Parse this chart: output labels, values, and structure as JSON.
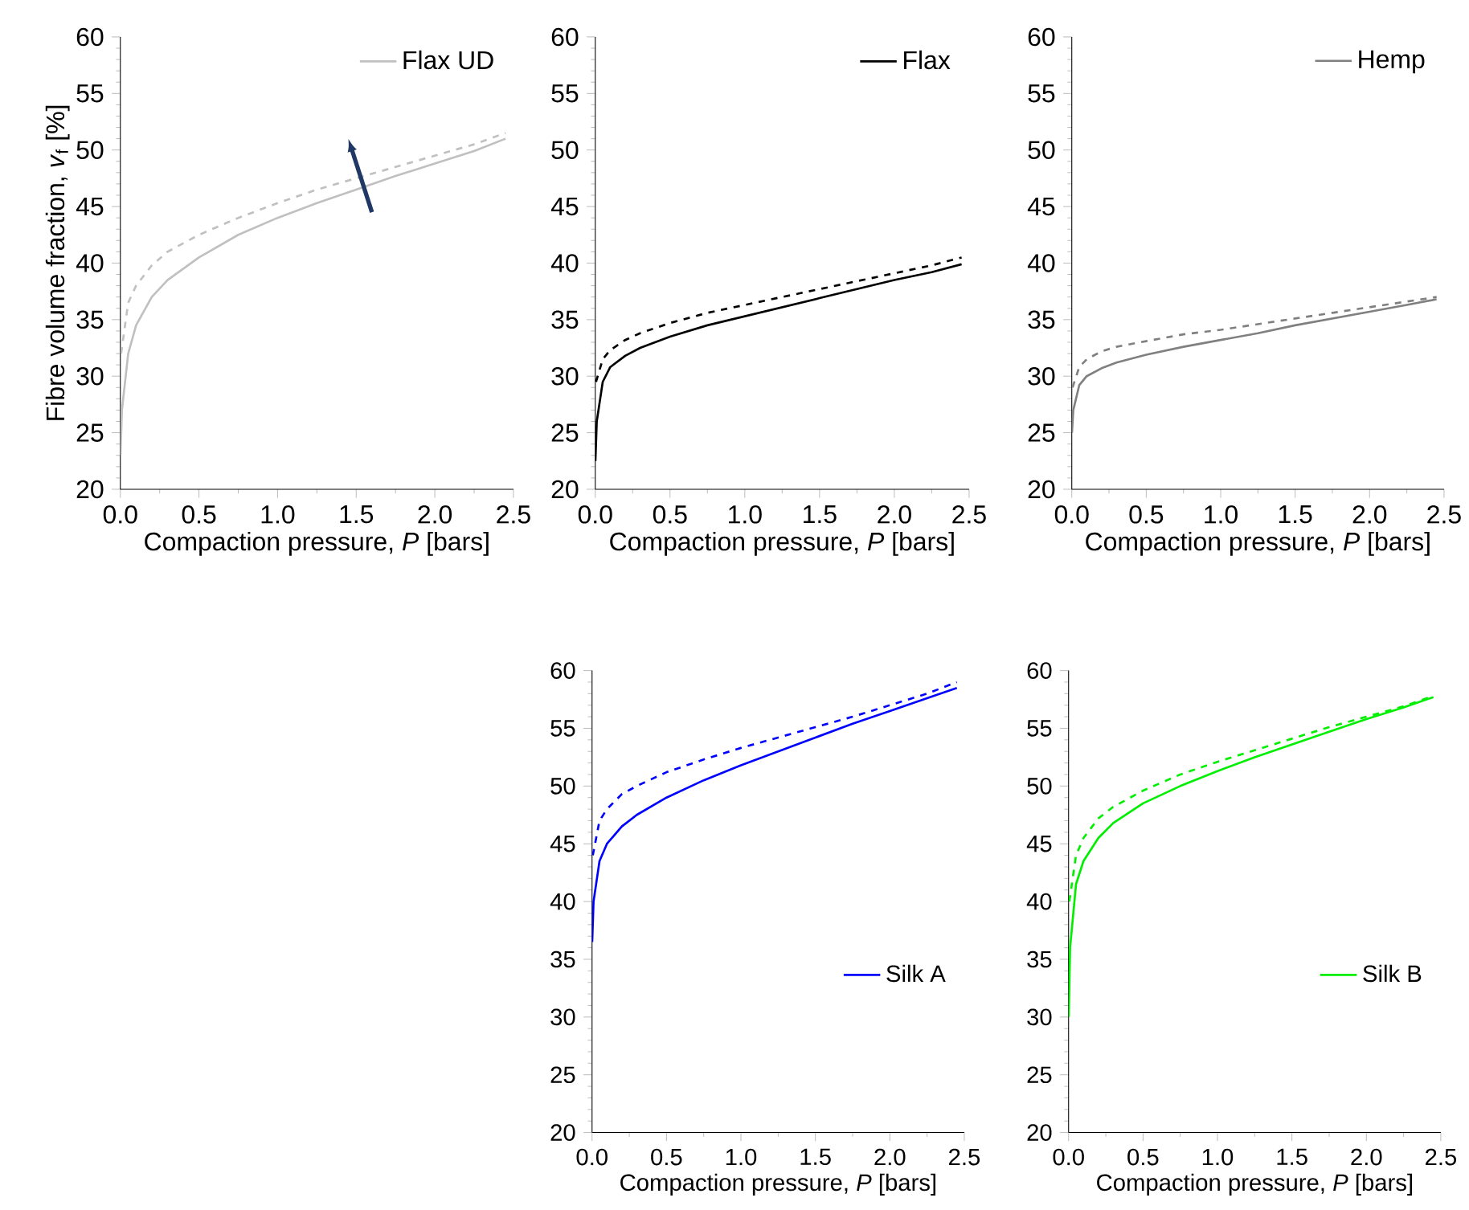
{
  "chart_data": [
    {
      "type": "line",
      "xlabel": "Compaction pressure, *P* [bars]",
      "ylabel": "Fibre volume fraction, *v*$_{f}$ [%]",
      "xlim": [
        0,
        2.5
      ],
      "ylim": [
        20,
        60
      ],
      "xticks": [
        {
          "value": 0,
          "label": "0.0"
        },
        0.5,
        {
          "value": 1,
          "label": "1.0"
        },
        1.5,
        {
          "value": 2,
          "label": "2.0"
        },
        2.5
      ],
      "yticks": [
        20,
        25,
        30,
        35,
        40,
        45,
        50,
        55,
        60
      ],
      "legend": "top right",
      "series": [
        {
          "name": "Flax UD",
          "color": "#c0c0c0",
          "line_style": "solid",
          "x": [
            0.001,
            0.01,
            0.05,
            0.1,
            0.2,
            0.3,
            0.5,
            0.75,
            1.0,
            1.25,
            1.5,
            1.75,
            2.0,
            2.25,
            2.45
          ],
          "values": [
            23,
            27,
            32,
            34.5,
            37,
            38.5,
            40.5,
            42.5,
            44,
            45.3,
            46.5,
            47.7,
            48.8,
            49.9,
            51
          ]
        },
        {
          "color": "#c0c0c0",
          "line_style": "dashed",
          "x": [
            0.005,
            0.05,
            0.1,
            0.2,
            0.3,
            0.5,
            0.75,
            1.0,
            1.25,
            1.5,
            1.75,
            2.0,
            2.25,
            2.45
          ],
          "values": [
            32,
            36.5,
            38,
            39.8,
            41,
            42.5,
            44,
            45.3,
            46.5,
            47.5,
            48.5,
            49.5,
            50.5,
            51.5
          ]
        }
      ]
    },
    {
      "type": "line",
      "xlabel": "Compaction pressure, *P* [bars]",
      "xlim": [
        0,
        2.5
      ],
      "ylim": [
        20,
        60
      ],
      "xticks": [
        {
          "value": 0,
          "label": "0.0"
        },
        0.5,
        {
          "value": 1,
          "label": "1.0"
        },
        1.5,
        {
          "value": 2,
          "label": "2.0"
        },
        2.5
      ],
      "yticks": [
        20,
        25,
        30,
        35,
        40,
        45,
        50,
        55,
        60
      ],
      "legend": "top right",
      "series": [
        {
          "name": "Flax",
          "color": "#000000",
          "line_style": "solid",
          "x": [
            0.001,
            0.01,
            0.05,
            0.1,
            0.2,
            0.3,
            0.5,
            0.75,
            1.0,
            1.25,
            1.5,
            1.75,
            2.0,
            2.25,
            2.45
          ],
          "values": [
            22.5,
            26,
            29.5,
            30.8,
            31.8,
            32.5,
            33.5,
            34.5,
            35.3,
            36.1,
            36.9,
            37.7,
            38.5,
            39.2,
            39.9
          ]
        },
        {
          "color": "#000000",
          "line_style": "dashed",
          "x": [
            0.005,
            0.05,
            0.1,
            0.2,
            0.3,
            0.5,
            0.75,
            1.0,
            1.25,
            1.5,
            1.75,
            2.0,
            2.25,
            2.45
          ],
          "values": [
            29.5,
            31.5,
            32.3,
            33.2,
            33.8,
            34.7,
            35.6,
            36.3,
            37,
            37.7,
            38.4,
            39.1,
            39.8,
            40.5
          ]
        }
      ]
    },
    {
      "type": "line",
      "xlabel": "Compaction pressure, *P* [bars]",
      "xlim": [
        0,
        2.5
      ],
      "ylim": [
        20,
        60
      ],
      "xticks": [
        {
          "value": 0,
          "label": "0.0"
        },
        0.5,
        {
          "value": 1,
          "label": "1.0"
        },
        1.5,
        {
          "value": 2,
          "label": "2.0"
        },
        2.5
      ],
      "yticks": [
        20,
        25,
        30,
        35,
        40,
        45,
        50,
        55,
        60
      ],
      "legend": "top right",
      "series": [
        {
          "name": "Hemp",
          "color": "#808080",
          "line_style": "solid",
          "x": [
            0.001,
            0.01,
            0.05,
            0.1,
            0.2,
            0.3,
            0.5,
            0.75,
            1.0,
            1.25,
            1.5,
            1.75,
            2.0,
            2.25,
            2.45
          ],
          "values": [
            25,
            27,
            29.2,
            30,
            30.7,
            31.2,
            31.9,
            32.6,
            33.2,
            33.8,
            34.5,
            35.1,
            35.7,
            36.3,
            36.8
          ]
        },
        {
          "color": "#808080",
          "line_style": "dashed",
          "x": [
            0.005,
            0.05,
            0.1,
            0.2,
            0.3,
            0.5,
            0.75,
            1.0,
            1.25,
            1.5,
            1.75,
            2.0,
            2.25,
            2.45
          ],
          "values": [
            29,
            30.8,
            31.5,
            32.2,
            32.6,
            33.1,
            33.7,
            34.1,
            34.6,
            35.1,
            35.6,
            36.1,
            36.6,
            37.0
          ]
        }
      ]
    },
    {
      "type": "line",
      "xlabel": "Compaction pressure, *P* [bars]",
      "xlim": [
        0,
        2.5
      ],
      "ylim": [
        20,
        60
      ],
      "xticks": [
        {
          "value": 0,
          "label": "0.0"
        },
        0.5,
        {
          "value": 1,
          "label": "1.0"
        },
        1.5,
        {
          "value": 2,
          "label": "2.0"
        },
        2.5
      ],
      "yticks": [
        20,
        25,
        30,
        35,
        40,
        45,
        50,
        55,
        60
      ],
      "legend": "bottom right",
      "series": [
        {
          "name": "Silk A",
          "color": "#0000ff",
          "line_style": "solid",
          "x": [
            0.001,
            0.01,
            0.05,
            0.1,
            0.2,
            0.3,
            0.5,
            0.75,
            1.0,
            1.25,
            1.5,
            1.75,
            2.0,
            2.25,
            2.45
          ],
          "values": [
            36.5,
            40,
            43.5,
            45,
            46.5,
            47.5,
            49,
            50.5,
            51.8,
            53,
            54.2,
            55.4,
            56.5,
            57.6,
            58.5
          ]
        },
        {
          "color": "#0000ff",
          "line_style": "dashed",
          "x": [
            0.005,
            0.05,
            0.1,
            0.2,
            0.3,
            0.5,
            0.75,
            1.0,
            1.25,
            1.5,
            1.75,
            2.0,
            2.25,
            2.45
          ],
          "values": [
            44,
            47,
            48,
            49.3,
            50,
            51.2,
            52.3,
            53.3,
            54.2,
            55.1,
            56,
            57,
            58,
            59
          ]
        }
      ]
    },
    {
      "type": "line",
      "xlabel": "Compaction pressure, *P* [bars]",
      "xlim": [
        0,
        2.5
      ],
      "ylim": [
        20,
        60
      ],
      "xticks": [
        {
          "value": 0,
          "label": "0.0"
        },
        0.5,
        {
          "value": 1,
          "label": "1.0"
        },
        1.5,
        {
          "value": 2,
          "label": "2.0"
        },
        2.5
      ],
      "yticks": [
        20,
        25,
        30,
        35,
        40,
        45,
        50,
        55,
        60
      ],
      "legend": "bottom right",
      "series": [
        {
          "name": "Silk B",
          "color": "#00ee00",
          "line_style": "solid",
          "x": [
            0.001,
            0.01,
            0.05,
            0.1,
            0.2,
            0.3,
            0.5,
            0.75,
            1.0,
            1.25,
            1.5,
            1.75,
            2.0,
            2.25,
            2.45
          ],
          "values": [
            30,
            36,
            41.5,
            43.5,
            45.5,
            46.8,
            48.5,
            50,
            51.3,
            52.5,
            53.6,
            54.7,
            55.8,
            56.8,
            57.7
          ]
        },
        {
          "color": "#00ee00",
          "line_style": "dashed",
          "x": [
            0.005,
            0.05,
            0.1,
            0.2,
            0.3,
            0.5,
            0.75,
            1.0,
            1.25,
            1.5,
            1.75,
            2.0,
            2.25,
            2.45
          ],
          "values": [
            40,
            44,
            45.5,
            47.2,
            48.2,
            49.6,
            51,
            52.1,
            53.1,
            54.1,
            55.1,
            56.0,
            56.9,
            57.8
          ]
        }
      ]
    }
  ]
}
